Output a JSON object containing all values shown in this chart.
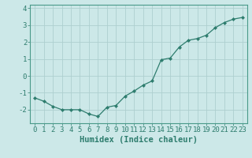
{
  "x": [
    0,
    1,
    2,
    3,
    4,
    5,
    6,
    7,
    8,
    9,
    10,
    11,
    12,
    13,
    14,
    15,
    16,
    17,
    18,
    19,
    20,
    21,
    22,
    23
  ],
  "y": [
    -1.3,
    -1.5,
    -1.8,
    -2.0,
    -2.0,
    -2.0,
    -2.25,
    -2.4,
    -1.85,
    -1.75,
    -1.2,
    -0.9,
    -0.55,
    -0.3,
    0.95,
    1.05,
    1.7,
    2.1,
    2.2,
    2.4,
    2.85,
    3.15,
    3.35,
    3.45
  ],
  "xlabel": "Humidex (Indice chaleur)",
  "ylim": [
    -2.8,
    4.2
  ],
  "xlim": [
    -0.5,
    23.5
  ],
  "yticks": [
    -2,
    -1,
    0,
    1,
    2,
    3,
    4
  ],
  "xticks": [
    0,
    1,
    2,
    3,
    4,
    5,
    6,
    7,
    8,
    9,
    10,
    11,
    12,
    13,
    14,
    15,
    16,
    17,
    18,
    19,
    20,
    21,
    22,
    23
  ],
  "line_color": "#2e7d6e",
  "marker": "D",
  "marker_size": 2.0,
  "bg_color": "#cce8e8",
  "grid_color": "#aecfcf",
  "spine_color": "#4a9a8a",
  "tick_color": "#2e7d6e",
  "label_color": "#2e7d6e",
  "xlabel_fontsize": 7.5,
  "tick_fontsize": 6.5
}
